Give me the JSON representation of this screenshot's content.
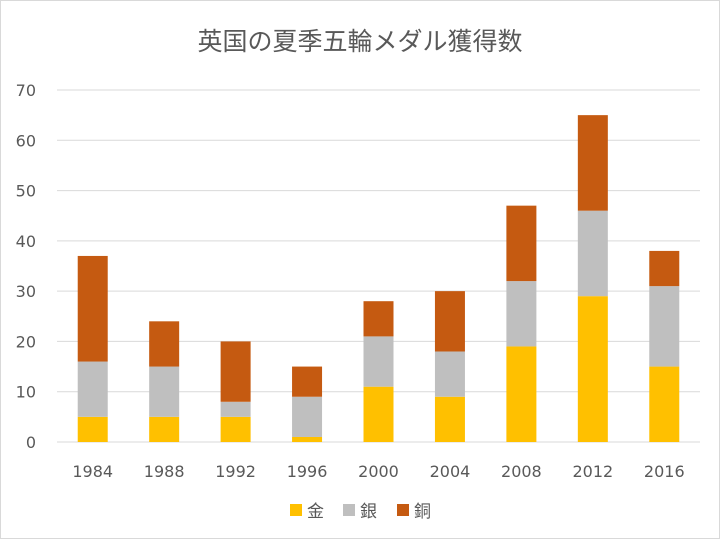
{
  "chart_data": {
    "type": "bar",
    "stacked": true,
    "title": "英国の夏季五輪メダル獲得数",
    "xlabel": "",
    "ylabel": "",
    "categories": [
      "1984",
      "1988",
      "1992",
      "1996",
      "2000",
      "2004",
      "2008",
      "2012",
      "2016"
    ],
    "series": [
      {
        "name": "金",
        "color": "#FFC000",
        "values": [
          5,
          5,
          5,
          1,
          11,
          9,
          19,
          29,
          15
        ]
      },
      {
        "name": "銀",
        "color": "#BFBFBF",
        "values": [
          11,
          10,
          3,
          8,
          10,
          9,
          13,
          17,
          16
        ]
      },
      {
        "name": "銅",
        "color": "#C55A11",
        "values": [
          21,
          9,
          12,
          6,
          7,
          12,
          15,
          19,
          7
        ]
      }
    ],
    "ylim": [
      0,
      70
    ],
    "yticks": [
      0,
      10,
      20,
      30,
      40,
      50,
      60,
      70
    ],
    "grid": true,
    "legend_position": "bottom"
  }
}
